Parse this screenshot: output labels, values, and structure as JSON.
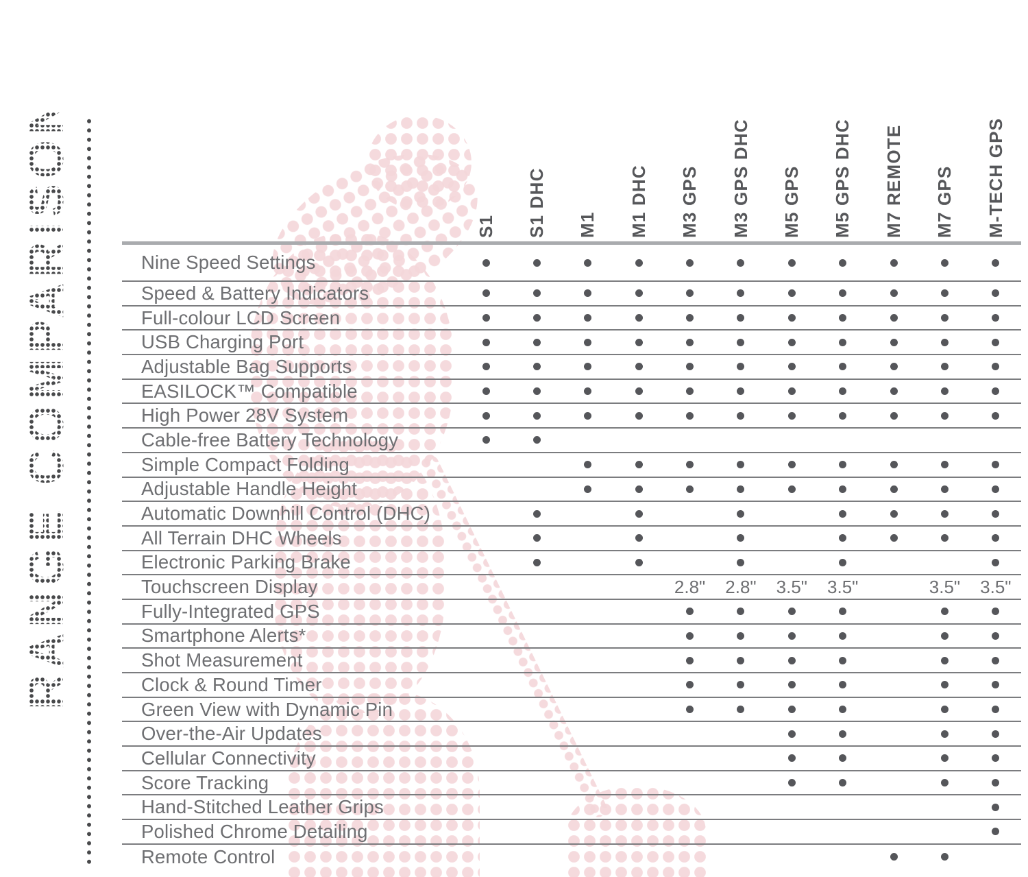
{
  "page": {
    "title": "RANGE COMPARISON"
  },
  "table": {
    "dot_symbol": "•",
    "columns": [
      "S1",
      "S1 DHC",
      "M1",
      "M1 DHC",
      "M3 GPS",
      "M3 GPS DHC",
      "M5 GPS",
      "M5 GPS DHC",
      "M7 REMOTE",
      "M7 GPS",
      "M-TECH GPS"
    ],
    "rows": [
      {
        "label": "Nine Speed Settings",
        "cells": [
          "•",
          "•",
          "•",
          "•",
          "•",
          "•",
          "•",
          "•",
          "•",
          "•",
          "•"
        ]
      },
      {
        "label": "Speed & Battery Indicators",
        "cells": [
          "•",
          "•",
          "•",
          "•",
          "•",
          "•",
          "•",
          "•",
          "•",
          "•",
          "•"
        ]
      },
      {
        "label": "Full-colour LCD Screen",
        "cells": [
          "•",
          "•",
          "•",
          "•",
          "•",
          "•",
          "•",
          "•",
          "•",
          "•",
          "•"
        ]
      },
      {
        "label": "USB Charging Port",
        "cells": [
          "•",
          "•",
          "•",
          "•",
          "•",
          "•",
          "•",
          "•",
          "•",
          "•",
          "•"
        ]
      },
      {
        "label": "Adjustable Bag Supports",
        "cells": [
          "•",
          "•",
          "•",
          "•",
          "•",
          "•",
          "•",
          "•",
          "•",
          "•",
          "•"
        ]
      },
      {
        "label": "EASILOCK™ Compatible",
        "cells": [
          "•",
          "•",
          "•",
          "•",
          "•",
          "•",
          "•",
          "•",
          "•",
          "•",
          "•"
        ]
      },
      {
        "label": "High Power 28V System",
        "cells": [
          "•",
          "•",
          "•",
          "•",
          "•",
          "•",
          "•",
          "•",
          "•",
          "•",
          "•"
        ]
      },
      {
        "label": "Cable-free Battery Technology",
        "cells": [
          "•",
          "•",
          "",
          "",
          "",
          "",
          "",
          "",
          "",
          "",
          ""
        ]
      },
      {
        "label": "Simple Compact Folding",
        "cells": [
          "",
          "",
          "•",
          "•",
          "•",
          "•",
          "•",
          "•",
          "•",
          "•",
          "•"
        ]
      },
      {
        "label": "Adjustable Handle Height",
        "cells": [
          "",
          "",
          "•",
          "•",
          "•",
          "•",
          "•",
          "•",
          "•",
          "•",
          "•"
        ]
      },
      {
        "label": "Automatic Downhill Control (DHC)",
        "cells": [
          "",
          "•",
          "",
          "•",
          "",
          "•",
          "",
          "•",
          "•",
          "•",
          "•"
        ]
      },
      {
        "label": "All Terrain DHC Wheels",
        "cells": [
          "",
          "•",
          "",
          "•",
          "",
          "•",
          "",
          "•",
          "•",
          "•",
          "•"
        ]
      },
      {
        "label": "Electronic Parking Brake",
        "cells": [
          "",
          "•",
          "",
          "•",
          "",
          "•",
          "",
          "•",
          "",
          "",
          "•"
        ]
      },
      {
        "label": "Touchscreen Display",
        "cells": [
          "",
          "",
          "",
          "",
          "2.8\"",
          "2.8\"",
          "3.5\"",
          "3.5\"",
          "",
          "3.5\"",
          "3.5\""
        ]
      },
      {
        "label": "Fully-Integrated GPS",
        "cells": [
          "",
          "",
          "",
          "",
          "•",
          "•",
          "•",
          "•",
          "",
          "•",
          "•"
        ]
      },
      {
        "label": "Smartphone Alerts*",
        "cells": [
          "",
          "",
          "",
          "",
          "•",
          "•",
          "•",
          "•",
          "",
          "•",
          "•"
        ]
      },
      {
        "label": "Shot Measurement",
        "cells": [
          "",
          "",
          "",
          "",
          "•",
          "•",
          "•",
          "•",
          "",
          "•",
          "•"
        ]
      },
      {
        "label": "Clock & Round Timer",
        "cells": [
          "",
          "",
          "",
          "",
          "•",
          "•",
          "•",
          "•",
          "",
          "•",
          "•"
        ]
      },
      {
        "label": "Green View with Dynamic Pin",
        "cells": [
          "",
          "",
          "",
          "",
          "•",
          "•",
          "•",
          "•",
          "",
          "•",
          "•"
        ]
      },
      {
        "label": "Over-the-Air Updates",
        "cells": [
          "",
          "",
          "",
          "",
          "",
          "",
          "•",
          "•",
          "",
          "•",
          "•"
        ]
      },
      {
        "label": "Cellular Connectivity",
        "cells": [
          "",
          "",
          "",
          "",
          "",
          "",
          "•",
          "•",
          "",
          "•",
          "•"
        ]
      },
      {
        "label": "Score Tracking",
        "cells": [
          "",
          "",
          "",
          "",
          "",
          "",
          "•",
          "•",
          "",
          "•",
          "•"
        ]
      },
      {
        "label": "Hand-Stitched Leather Grips",
        "cells": [
          "",
          "",
          "",
          "",
          "",
          "",
          "",
          "",
          "",
          "",
          "•"
        ]
      },
      {
        "label": "Polished Chrome Detailing",
        "cells": [
          "",
          "",
          "",
          "",
          "",
          "",
          "",
          "",
          "",
          "",
          "•"
        ]
      },
      {
        "label": "Remote Control",
        "cells": [
          "",
          "",
          "",
          "",
          "",
          "",
          "",
          "",
          "•",
          "•",
          ""
        ]
      }
    ]
  },
  "colors": {
    "label_text": "#6e6f72",
    "header_text": "#56575a",
    "bullet": "#55565a",
    "row_line": "#7b7c7f",
    "header_line": "#a9abae",
    "title_dots": "#48494b",
    "halftone_pink": "#f4d7da"
  }
}
